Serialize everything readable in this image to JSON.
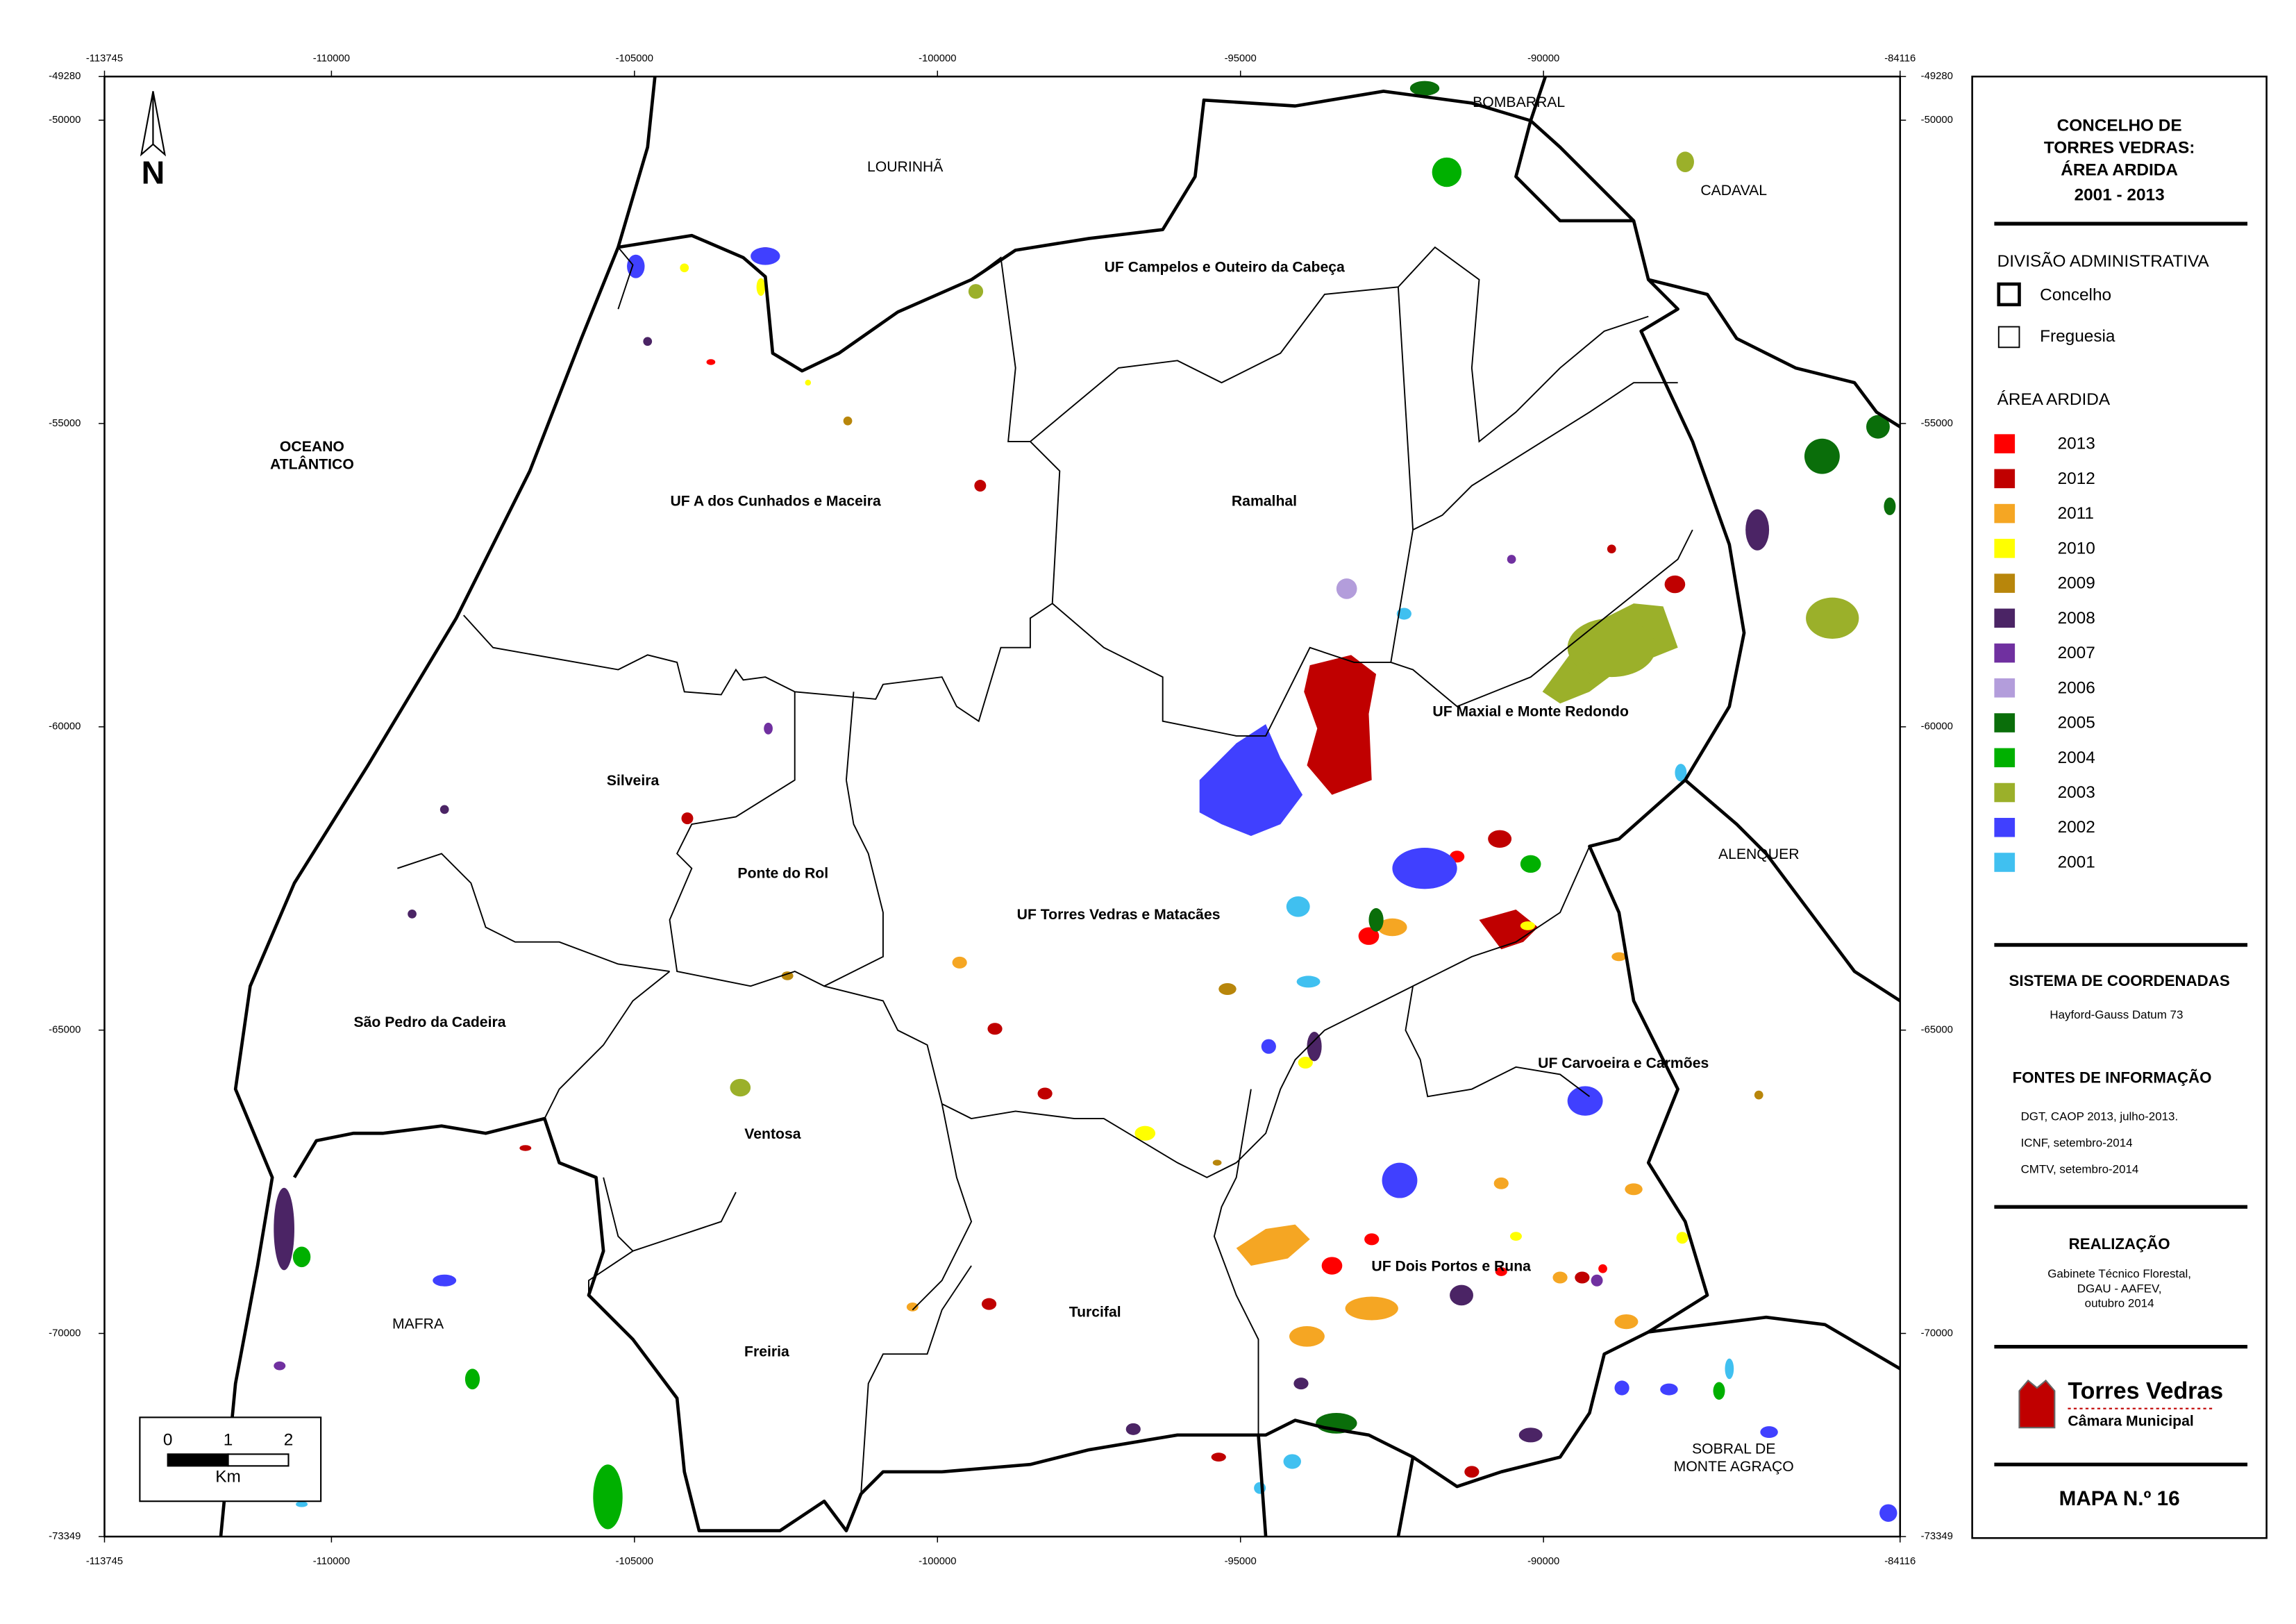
{
  "map": {
    "xlim": [
      -113745,
      -84116
    ],
    "ylim": [
      -49280,
      -73349
    ],
    "xticks": [
      -113745,
      -110000,
      -105000,
      -100000,
      -95000,
      -90000,
      -84116
    ],
    "yticks": [
      -49280,
      -50000,
      -55000,
      -60000,
      -65000,
      -70000,
      -73349
    ],
    "north": "N",
    "scale_bar": {
      "ticks": [
        0,
        1,
        2
      ],
      "unit": "Km"
    }
  },
  "places": [
    "LOURINHÃ",
    "BOMBARRAL",
    "CADAVAL",
    "OCEANO",
    "ATLÂNTICO",
    "UF Campelos e Outeiro da Cabeça",
    "UF A dos Cunhados e Maceira",
    "Ramalhal",
    "UF Maxial e Monte Redondo",
    "Silveira",
    "Ponte do Rol",
    "UF Torres Vedras e Matacães",
    "ALENQUER",
    "São Pedro da Cadeira",
    "UF Carvoeira e Carmões",
    "Ventosa",
    "UF Dois Portos e Runa",
    "MAFRA",
    "Turcifal",
    "Freiria",
    "SOBRAL DE",
    "MONTE AGRAÇO"
  ],
  "legend": {
    "title": [
      "CONCELHO DE",
      "TORRES VEDRAS:",
      "ÁREA ARDIDA",
      "2001 - 2013"
    ],
    "admin_title": "DIVISÃO ADMINISTRATIVA",
    "admin_items": [
      "Concelho",
      "Freguesia"
    ],
    "burn_title": "ÁREA ARDIDA",
    "years": [
      {
        "label": "2013",
        "color": "#ff0000"
      },
      {
        "label": "2012",
        "color": "#c00000"
      },
      {
        "label": "2011",
        "color": "#f5a623"
      },
      {
        "label": "2010",
        "color": "#ffff00"
      },
      {
        "label": "2009",
        "color": "#b8860b"
      },
      {
        "label": "2008",
        "color": "#4b2465"
      },
      {
        "label": "2007",
        "color": "#7030a0"
      },
      {
        "label": "2006",
        "color": "#b39ddb"
      },
      {
        "label": "2005",
        "color": "#0a6e0a"
      },
      {
        "label": "2004",
        "color": "#00b000"
      },
      {
        "label": "2003",
        "color": "#9bb02a"
      },
      {
        "label": "2002",
        "color": "#4040ff"
      },
      {
        "label": "2001",
        "color": "#40c0f0"
      }
    ]
  },
  "coordinates": {
    "title": "SISTEMA DE COORDENADAS",
    "text": "Hayford-Gauss Datum 73"
  },
  "sources": {
    "title": "FONTES DE  INFORMAÇÃO",
    "lines": [
      "DGT, CAOP 2013, julho-2013.",
      "ICNF,  setembro-2014",
      "CMTV,  setembro-2014"
    ]
  },
  "credits": {
    "title": "REALIZAÇÃO",
    "lines": [
      "Gabinete Técnico Florestal,",
      "DGAU - AAFEV,",
      "outubro 2014"
    ]
  },
  "logo": {
    "name": "Torres Vedras",
    "sub": "Câmara Municipal"
  },
  "map_number": "MAPA N.º 16"
}
